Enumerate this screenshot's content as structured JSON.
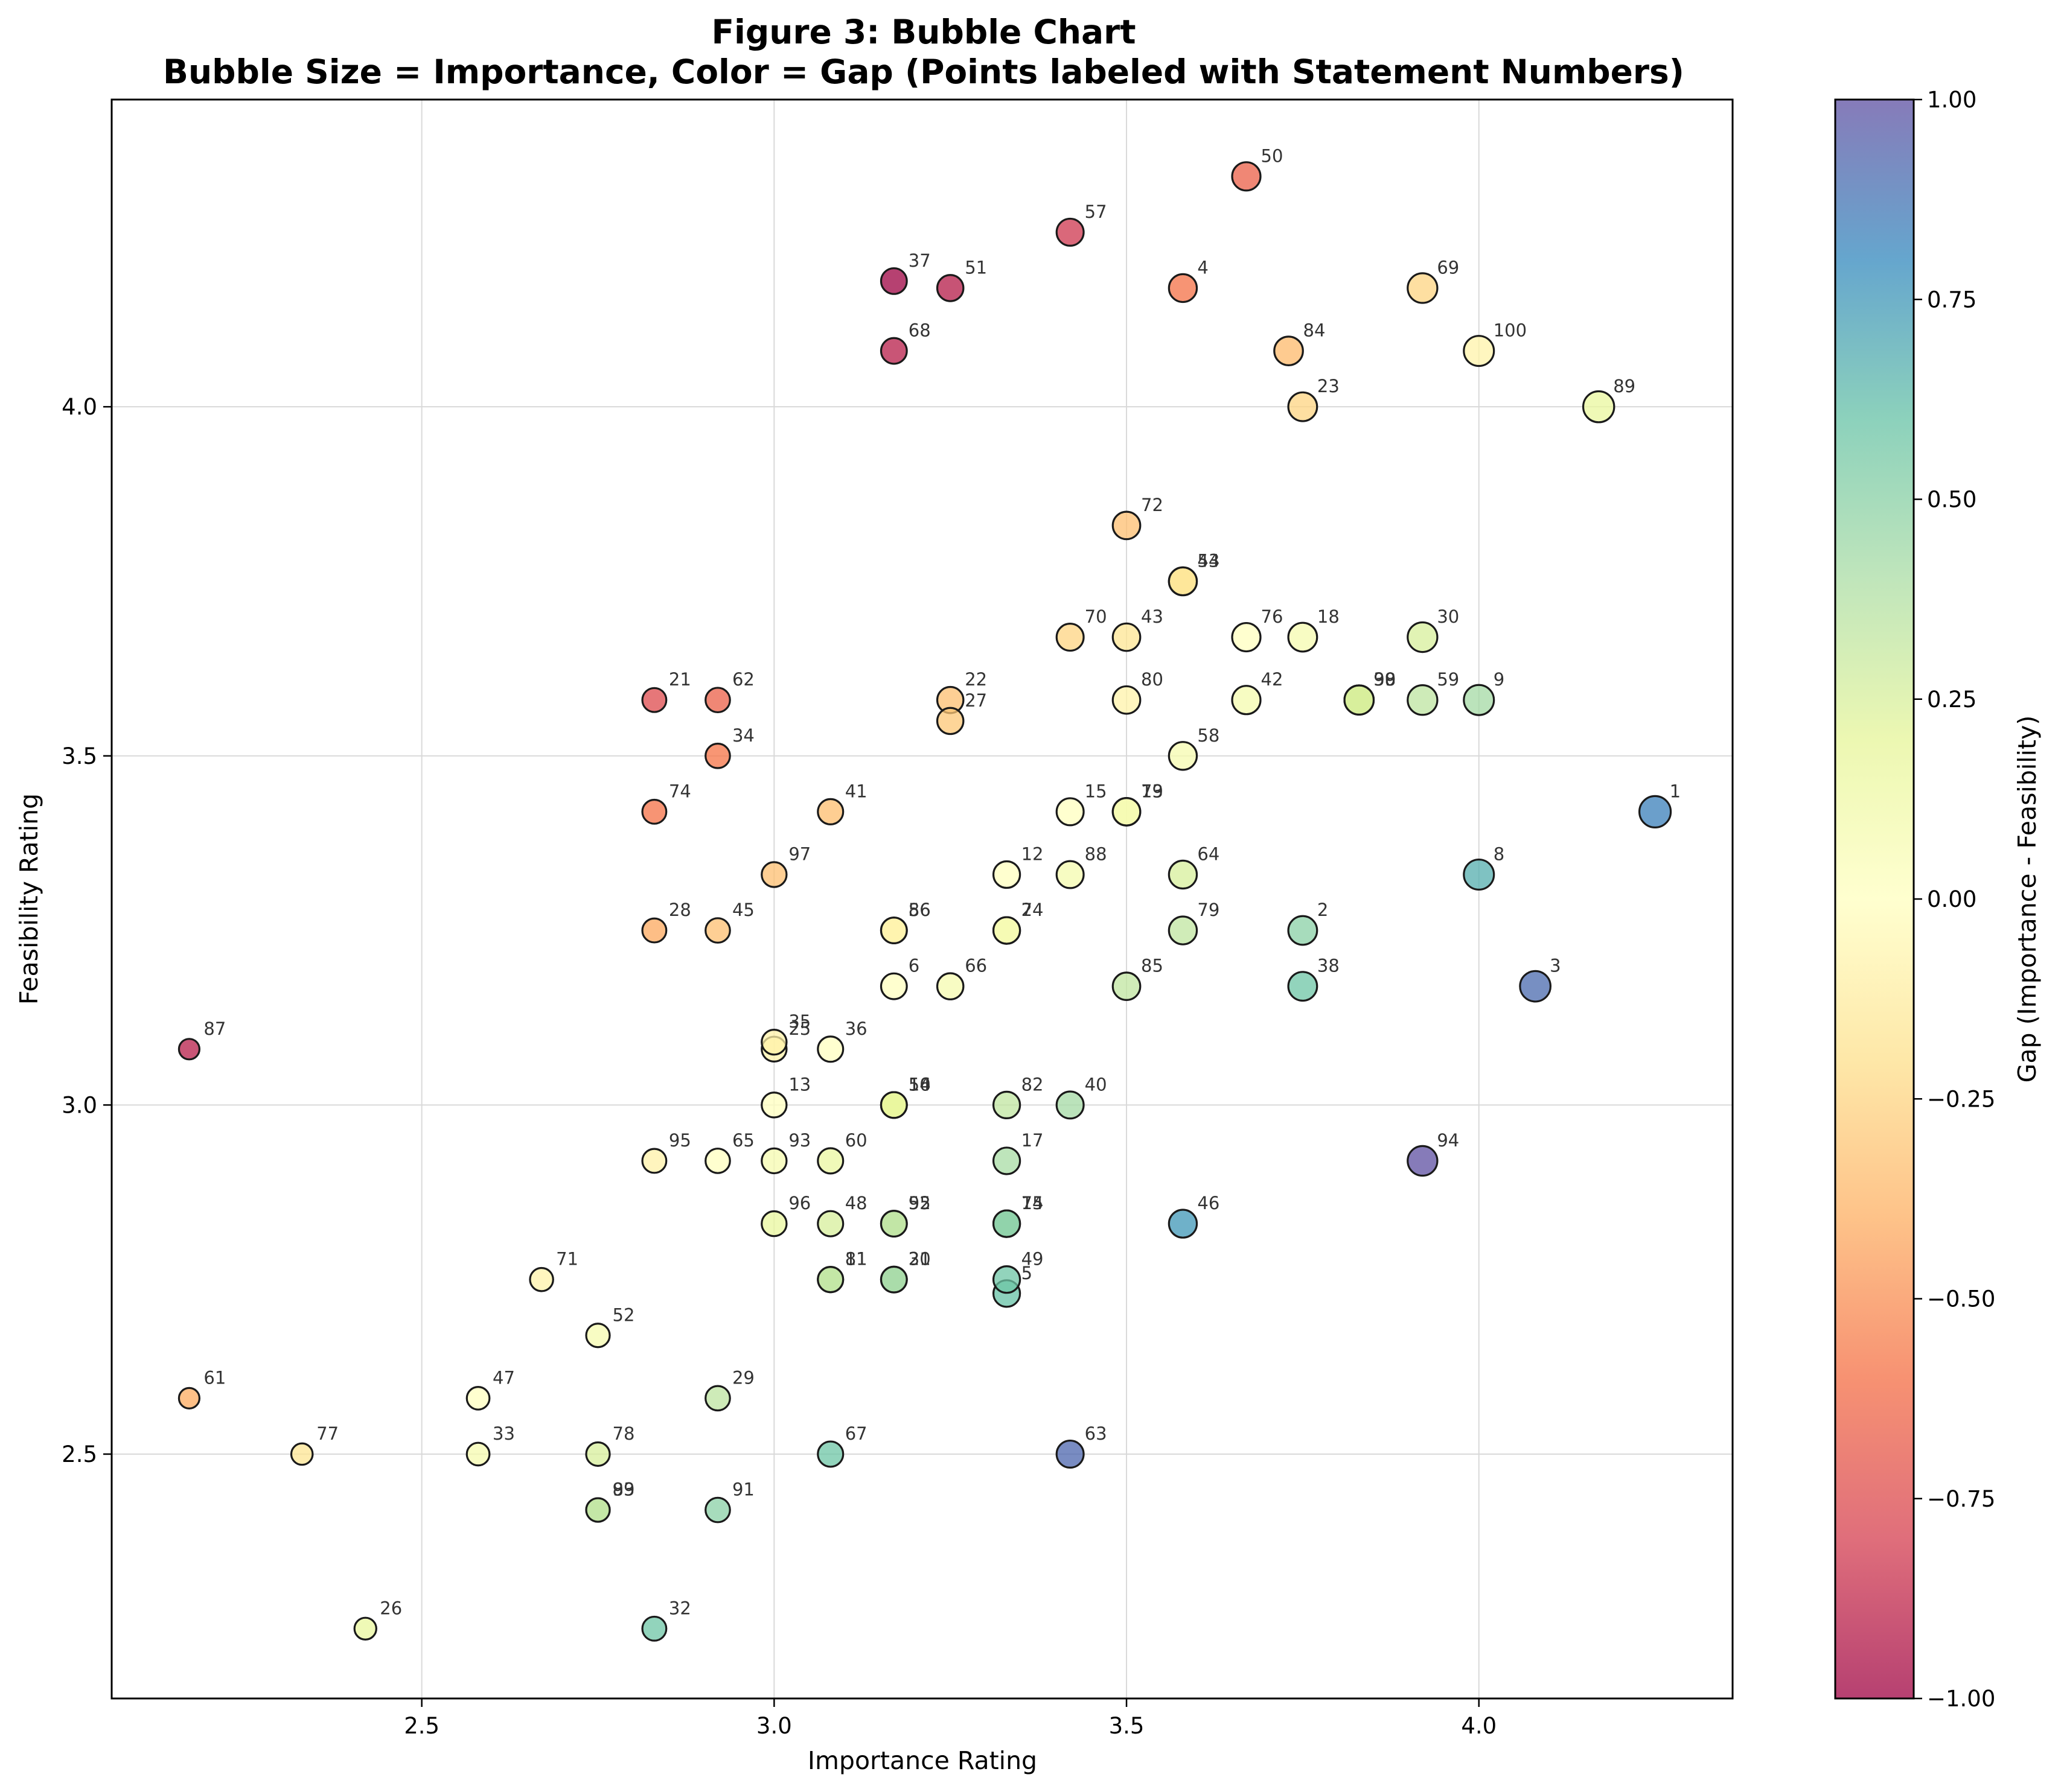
{
  "chart_data": {
    "type": "scatter",
    "title": "Figure 3: Bubble Chart",
    "subtitle": "Bubble Size = Importance, Color = Gap (Points labeled with Statement Numbers)",
    "xlabel": "Importance Rating",
    "ylabel": "Feasibility Rating",
    "xlim": [
      2.06,
      4.36
    ],
    "ylim": [
      2.15,
      4.44
    ],
    "xticks": [
      "2.5",
      "3.0",
      "3.5",
      "4.0"
    ],
    "yticks": [
      "2.5",
      "3.0",
      "3.5",
      "4.0"
    ],
    "grid": true,
    "size_encoding": "Importance",
    "color_encoding": "Gap (Importance - Feasibility)",
    "colorbar": {
      "label": "Gap (Importance - Feasibility)",
      "range": [
        -1.0,
        1.0
      ],
      "ticks": [
        "−1.00",
        "−0.75",
        "−0.50",
        "−0.25",
        "0.00",
        "0.25",
        "0.50",
        "0.75",
        "1.00"
      ],
      "colormap_stops": [
        "#9e0142",
        "#d53e4f",
        "#f46d43",
        "#fdae61",
        "#fee08b",
        "#ffffbf",
        "#e6f598",
        "#abdda4",
        "#66c2a5",
        "#3288bd",
        "#5e4fa2"
      ]
    },
    "points": [
      {
        "label": "1",
        "x": 4.25,
        "y": 3.42
      },
      {
        "label": "2",
        "x": 3.75,
        "y": 3.25
      },
      {
        "label": "3",
        "x": 4.08,
        "y": 3.17
      },
      {
        "label": "4",
        "x": 3.58,
        "y": 4.17
      },
      {
        "label": "5",
        "x": 3.33,
        "y": 2.73
      },
      {
        "label": "6",
        "x": 3.17,
        "y": 3.17
      },
      {
        "label": "7",
        "x": 3.33,
        "y": 3.25
      },
      {
        "label": "8",
        "x": 4.0,
        "y": 3.33
      },
      {
        "label": "9",
        "x": 4.0,
        "y": 3.58
      },
      {
        "label": "10",
        "x": 3.17,
        "y": 3.0
      },
      {
        "label": "11",
        "x": 3.08,
        "y": 2.75
      },
      {
        "label": "12",
        "x": 3.33,
        "y": 3.33
      },
      {
        "label": "13",
        "x": 3.0,
        "y": 3.0
      },
      {
        "label": "14",
        "x": 3.33,
        "y": 2.83
      },
      {
        "label": "15",
        "x": 3.42,
        "y": 3.42
      },
      {
        "label": "16",
        "x": 3.17,
        "y": 3.0
      },
      {
        "label": "17",
        "x": 3.33,
        "y": 2.92
      },
      {
        "label": "18",
        "x": 3.75,
        "y": 3.67
      },
      {
        "label": "19",
        "x": 3.5,
        "y": 3.42
      },
      {
        "label": "20",
        "x": 3.17,
        "y": 2.75
      },
      {
        "label": "21",
        "x": 2.83,
        "y": 3.58
      },
      {
        "label": "22",
        "x": 3.25,
        "y": 3.58
      },
      {
        "label": "23",
        "x": 3.75,
        "y": 4.0
      },
      {
        "label": "24",
        "x": 3.33,
        "y": 3.25
      },
      {
        "label": "25",
        "x": 3.0,
        "y": 3.08
      },
      {
        "label": "26",
        "x": 2.42,
        "y": 2.25
      },
      {
        "label": "27",
        "x": 3.25,
        "y": 3.55
      },
      {
        "label": "28",
        "x": 2.83,
        "y": 3.25
      },
      {
        "label": "29",
        "x": 2.92,
        "y": 2.58
      },
      {
        "label": "30",
        "x": 3.92,
        "y": 3.67
      },
      {
        "label": "31",
        "x": 3.17,
        "y": 2.75
      },
      {
        "label": "32",
        "x": 2.83,
        "y": 2.25
      },
      {
        "label": "33",
        "x": 2.58,
        "y": 2.5
      },
      {
        "label": "34",
        "x": 2.92,
        "y": 3.5
      },
      {
        "label": "35",
        "x": 3.0,
        "y": 3.09
      },
      {
        "label": "36",
        "x": 3.08,
        "y": 3.08
      },
      {
        "label": "37",
        "x": 3.17,
        "y": 4.18
      },
      {
        "label": "38",
        "x": 3.75,
        "y": 3.17
      },
      {
        "label": "39",
        "x": 3.83,
        "y": 3.58
      },
      {
        "label": "40",
        "x": 3.42,
        "y": 3.0
      },
      {
        "label": "41",
        "x": 3.08,
        "y": 3.42
      },
      {
        "label": "42",
        "x": 3.67,
        "y": 3.58
      },
      {
        "label": "43",
        "x": 3.5,
        "y": 3.67
      },
      {
        "label": "44",
        "x": 3.58,
        "y": 3.75
      },
      {
        "label": "45",
        "x": 2.92,
        "y": 3.25
      },
      {
        "label": "46",
        "x": 3.58,
        "y": 2.83
      },
      {
        "label": "47",
        "x": 2.58,
        "y": 2.58
      },
      {
        "label": "48",
        "x": 3.08,
        "y": 2.83
      },
      {
        "label": "49",
        "x": 3.33,
        "y": 2.75
      },
      {
        "label": "50",
        "x": 3.67,
        "y": 4.33
      },
      {
        "label": "51",
        "x": 3.25,
        "y": 4.17
      },
      {
        "label": "52",
        "x": 2.75,
        "y": 2.67
      },
      {
        "label": "53",
        "x": 3.58,
        "y": 3.75
      },
      {
        "label": "54",
        "x": 3.17,
        "y": 3.0
      },
      {
        "label": "55",
        "x": 3.17,
        "y": 2.83
      },
      {
        "label": "56",
        "x": 3.17,
        "y": 3.25
      },
      {
        "label": "57",
        "x": 3.42,
        "y": 4.25
      },
      {
        "label": "58",
        "x": 3.58,
        "y": 3.5
      },
      {
        "label": "59",
        "x": 3.92,
        "y": 3.58
      },
      {
        "label": "60",
        "x": 3.08,
        "y": 2.92
      },
      {
        "label": "61",
        "x": 2.17,
        "y": 2.58
      },
      {
        "label": "62",
        "x": 2.92,
        "y": 3.58
      },
      {
        "label": "63",
        "x": 3.42,
        "y": 2.5
      },
      {
        "label": "64",
        "x": 3.58,
        "y": 3.33
      },
      {
        "label": "65",
        "x": 2.92,
        "y": 2.92
      },
      {
        "label": "66",
        "x": 3.25,
        "y": 3.17
      },
      {
        "label": "67",
        "x": 3.08,
        "y": 2.5
      },
      {
        "label": "68",
        "x": 3.17,
        "y": 4.08
      },
      {
        "label": "69",
        "x": 3.92,
        "y": 4.17
      },
      {
        "label": "70",
        "x": 3.42,
        "y": 3.67
      },
      {
        "label": "71",
        "x": 2.67,
        "y": 2.75
      },
      {
        "label": "72",
        "x": 3.5,
        "y": 3.83
      },
      {
        "label": "73",
        "x": 3.5,
        "y": 3.42
      },
      {
        "label": "74",
        "x": 2.83,
        "y": 3.42
      },
      {
        "label": "75",
        "x": 3.33,
        "y": 2.83
      },
      {
        "label": "76",
        "x": 3.67,
        "y": 3.67
      },
      {
        "label": "77",
        "x": 2.33,
        "y": 2.5
      },
      {
        "label": "78",
        "x": 2.75,
        "y": 2.5
      },
      {
        "label": "79",
        "x": 3.58,
        "y": 3.25
      },
      {
        "label": "80",
        "x": 3.5,
        "y": 3.58
      },
      {
        "label": "81",
        "x": 3.08,
        "y": 2.75
      },
      {
        "label": "82",
        "x": 3.33,
        "y": 3.0
      },
      {
        "label": "83",
        "x": 2.75,
        "y": 2.42
      },
      {
        "label": "84",
        "x": 3.73,
        "y": 4.08
      },
      {
        "label": "85",
        "x": 3.5,
        "y": 3.17
      },
      {
        "label": "86",
        "x": 3.17,
        "y": 3.25
      },
      {
        "label": "87",
        "x": 2.17,
        "y": 3.08
      },
      {
        "label": "88",
        "x": 3.42,
        "y": 3.33
      },
      {
        "label": "89",
        "x": 4.17,
        "y": 4.0
      },
      {
        "label": "90",
        "x": 3.83,
        "y": 3.58
      },
      {
        "label": "91",
        "x": 2.92,
        "y": 2.42
      },
      {
        "label": "92",
        "x": 3.17,
        "y": 2.83
      },
      {
        "label": "93",
        "x": 3.0,
        "y": 2.92
      },
      {
        "label": "94",
        "x": 3.92,
        "y": 2.92
      },
      {
        "label": "95",
        "x": 2.83,
        "y": 2.92
      },
      {
        "label": "96",
        "x": 3.0,
        "y": 2.83
      },
      {
        "label": "97",
        "x": 3.0,
        "y": 3.33
      },
      {
        "label": "98",
        "x": 3.83,
        "y": 3.58
      },
      {
        "label": "99",
        "x": 2.75,
        "y": 2.42
      },
      {
        "label": "100",
        "x": 4.0,
        "y": 4.08
      }
    ]
  }
}
